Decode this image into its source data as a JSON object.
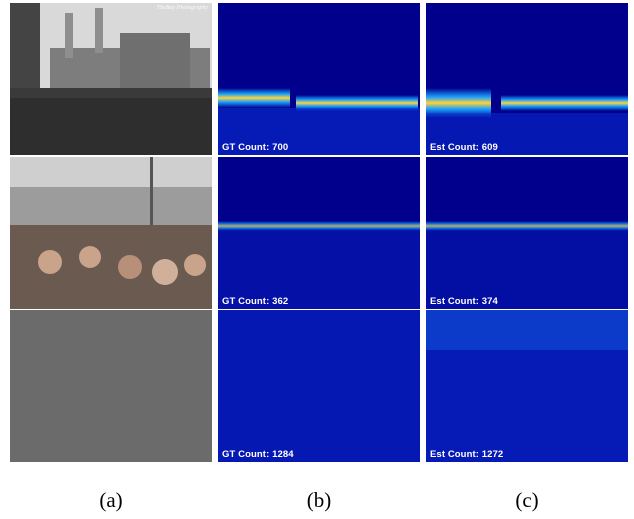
{
  "figure": {
    "columns": [
      {
        "label": "(a)"
      },
      {
        "label": "(b)"
      },
      {
        "label": "(c)"
      }
    ],
    "rows": [
      {
        "gt_label": "GT Count: 700",
        "est_label": "Est Count: 609"
      },
      {
        "gt_label": "GT Count: 362",
        "est_label": "Est Count: 374"
      },
      {
        "gt_label": "GT Count: 1284",
        "est_label": "Est Count: 1272"
      }
    ],
    "watermark": "TheBay Photography"
  },
  "colors": {
    "heatmap_background": "#00008c",
    "label_text": "#ffffff"
  }
}
